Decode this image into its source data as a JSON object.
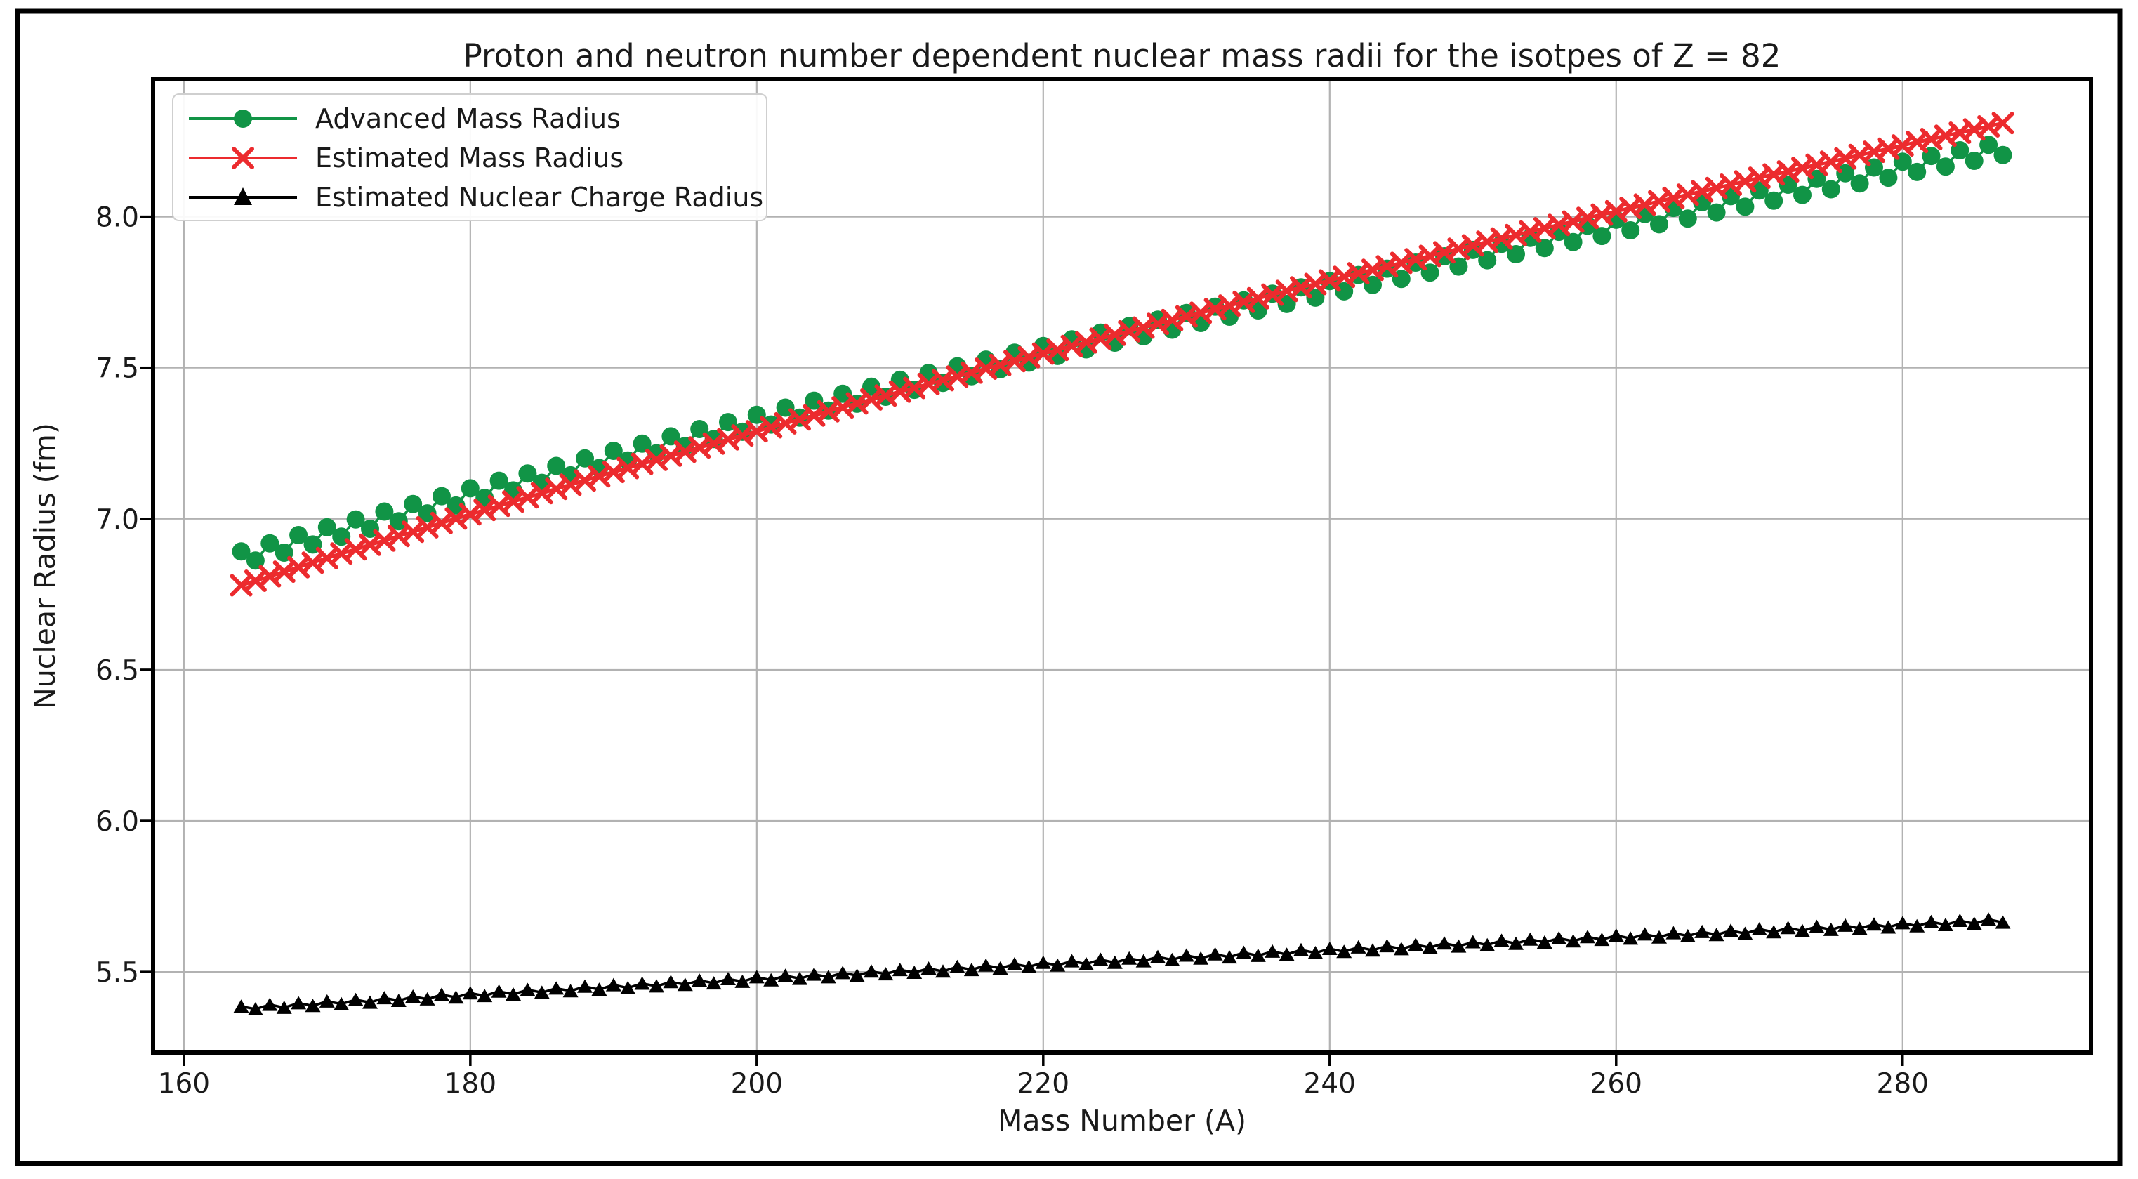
{
  "page": {
    "background": "#ffffff",
    "outer_border_color": "#000000"
  },
  "chart_data": {
    "type": "line",
    "title": "Proton and neutron number dependent nuclear mass radii for the isotpes of Z = 82",
    "xlabel": "Mass Number (A)",
    "ylabel": "Nuclear Radius (fm)",
    "xlim": [
      157.85,
      293.15
    ],
    "ylim": [
      5.233,
      8.457
    ],
    "x_ticks": [
      160,
      180,
      200,
      220,
      240,
      260,
      280
    ],
    "x_tick_labels": [
      "160",
      "180",
      "200",
      "220",
      "240",
      "260",
      "280"
    ],
    "y_ticks": [
      5.5,
      6.0,
      6.5,
      7.0,
      7.5,
      8.0
    ],
    "y_tick_labels": [
      "5.5",
      "6.0",
      "6.5",
      "7.0",
      "7.5",
      "8.0"
    ],
    "grid": true,
    "grid_color": "#b2b2b2",
    "axis_color": "#000000",
    "text_color": "#1a1a1a",
    "legend_position": "upper left",
    "x": [
      164,
      165,
      166,
      167,
      168,
      169,
      170,
      171,
      172,
      173,
      174,
      175,
      176,
      177,
      178,
      179,
      180,
      181,
      182,
      183,
      184,
      185,
      186,
      187,
      188,
      189,
      190,
      191,
      192,
      193,
      194,
      195,
      196,
      197,
      198,
      199,
      200,
      201,
      202,
      203,
      204,
      205,
      206,
      207,
      208,
      209,
      210,
      211,
      212,
      213,
      214,
      215,
      216,
      217,
      218,
      219,
      220,
      221,
      222,
      223,
      224,
      225,
      226,
      227,
      228,
      229,
      230,
      231,
      232,
      233,
      234,
      235,
      236,
      237,
      238,
      239,
      240,
      241,
      242,
      243,
      244,
      245,
      246,
      247,
      248,
      249,
      250,
      251,
      252,
      253,
      254,
      255,
      256,
      257,
      258,
      259,
      260,
      261,
      262,
      263,
      264,
      265,
      266,
      267,
      268,
      269,
      270,
      271,
      272,
      273,
      274,
      275,
      276,
      277,
      278,
      279,
      280,
      281,
      282,
      283,
      284,
      285,
      286,
      287
    ],
    "series": [
      {
        "name": "Advanced Mass Radius",
        "color": "#119446",
        "marker": "circle",
        "line_width": 3.5,
        "values": [
          6.892,
          6.862,
          6.919,
          6.888,
          6.946,
          6.915,
          6.972,
          6.941,
          6.998,
          6.967,
          7.024,
          6.992,
          7.049,
          7.018,
          7.075,
          7.044,
          7.101,
          7.069,
          7.126,
          7.094,
          7.15,
          7.119,
          7.175,
          7.144,
          7.2,
          7.168,
          7.225,
          7.193,
          7.249,
          7.217,
          7.273,
          7.241,
          7.297,
          7.264,
          7.32,
          7.288,
          7.344,
          7.312,
          7.368,
          7.335,
          7.391,
          7.358,
          7.414,
          7.381,
          7.437,
          7.404,
          7.46,
          7.427,
          7.483,
          7.45,
          7.505,
          7.472,
          7.527,
          7.495,
          7.55,
          7.517,
          7.572,
          7.539,
          7.594,
          7.561,
          7.616,
          7.583,
          7.638,
          7.604,
          7.659,
          7.626,
          7.681,
          7.648,
          7.702,
          7.669,
          7.723,
          7.69,
          7.745,
          7.711,
          7.766,
          7.732,
          7.787,
          7.753,
          7.807,
          7.774,
          7.828,
          7.794,
          7.848,
          7.815,
          7.869,
          7.835,
          7.89,
          7.856,
          7.91,
          7.876,
          7.93,
          7.896,
          7.95,
          7.916,
          7.97,
          7.936,
          7.99,
          7.955,
          8.009,
          7.975,
          8.029,
          7.994,
          8.048,
          8.014,
          8.068,
          8.033,
          8.087,
          8.053,
          8.106,
          8.072,
          8.125,
          8.091,
          8.144,
          8.11,
          8.163,
          8.129,
          8.182,
          8.148,
          8.201,
          8.166,
          8.22,
          8.185,
          8.238,
          8.204
        ]
      },
      {
        "name": "Estimated Mass Radius",
        "color": "#ec2b2e",
        "marker": "x",
        "line_width": 5,
        "values": [
          6.78,
          6.795,
          6.81,
          6.825,
          6.84,
          6.855,
          6.87,
          6.885,
          6.899,
          6.914,
          6.928,
          6.943,
          6.957,
          6.972,
          6.986,
          7.001,
          7.015,
          7.029,
          7.043,
          7.057,
          7.071,
          7.085,
          7.099,
          7.113,
          7.127,
          7.141,
          7.155,
          7.168,
          7.182,
          7.195,
          7.209,
          7.222,
          7.236,
          7.249,
          7.263,
          7.276,
          7.29,
          7.303,
          7.316,
          7.329,
          7.342,
          7.356,
          7.369,
          7.382,
          7.395,
          7.408,
          7.421,
          7.433,
          7.446,
          7.459,
          7.471,
          7.484,
          7.497,
          7.509,
          7.522,
          7.535,
          7.547,
          7.559,
          7.572,
          7.584,
          7.596,
          7.609,
          7.621,
          7.633,
          7.645,
          7.658,
          7.67,
          7.682,
          7.694,
          7.706,
          7.718,
          7.73,
          7.742,
          7.754,
          7.766,
          7.777,
          7.789,
          7.801,
          7.813,
          7.824,
          7.836,
          7.847,
          7.859,
          7.87,
          7.882,
          7.894,
          7.905,
          7.917,
          7.928,
          7.939,
          7.951,
          7.962,
          7.973,
          7.984,
          7.996,
          8.007,
          8.018,
          8.029,
          8.04,
          8.051,
          8.062,
          8.073,
          8.084,
          8.095,
          8.106,
          8.117,
          8.129,
          8.14,
          8.15,
          8.161,
          8.172,
          8.182,
          8.193,
          8.204,
          8.215,
          8.225,
          8.236,
          8.247,
          8.257,
          8.268,
          8.278,
          8.289,
          8.299,
          8.31
        ]
      },
      {
        "name": "Estimated Nuclear Charge Radius",
        "color": "#000000",
        "marker": "triangle-up",
        "line_width": 3.5,
        "values": [
          5.386,
          5.377,
          5.392,
          5.382,
          5.397,
          5.388,
          5.403,
          5.394,
          5.408,
          5.399,
          5.414,
          5.405,
          5.419,
          5.41,
          5.425,
          5.416,
          5.43,
          5.421,
          5.436,
          5.426,
          5.441,
          5.432,
          5.446,
          5.437,
          5.452,
          5.442,
          5.457,
          5.447,
          5.462,
          5.453,
          5.467,
          5.458,
          5.472,
          5.463,
          5.477,
          5.468,
          5.483,
          5.473,
          5.488,
          5.478,
          5.492,
          5.483,
          5.497,
          5.488,
          5.502,
          5.493,
          5.507,
          5.498,
          5.512,
          5.502,
          5.517,
          5.507,
          5.522,
          5.512,
          5.526,
          5.517,
          5.531,
          5.522,
          5.536,
          5.526,
          5.541,
          5.531,
          5.545,
          5.536,
          5.55,
          5.54,
          5.555,
          5.545,
          5.559,
          5.549,
          5.564,
          5.554,
          5.568,
          5.558,
          5.573,
          5.563,
          5.577,
          5.567,
          5.582,
          5.572,
          5.586,
          5.576,
          5.59,
          5.581,
          5.595,
          5.585,
          5.599,
          5.589,
          5.604,
          5.594,
          5.608,
          5.598,
          5.612,
          5.602,
          5.616,
          5.607,
          5.621,
          5.611,
          5.625,
          5.615,
          5.629,
          5.619,
          5.633,
          5.623,
          5.637,
          5.627,
          5.642,
          5.632,
          5.646,
          5.636,
          5.65,
          5.64,
          5.654,
          5.644,
          5.658,
          5.648,
          5.662,
          5.652,
          5.666,
          5.656,
          5.67,
          5.66,
          5.674,
          5.664
        ]
      }
    ]
  }
}
